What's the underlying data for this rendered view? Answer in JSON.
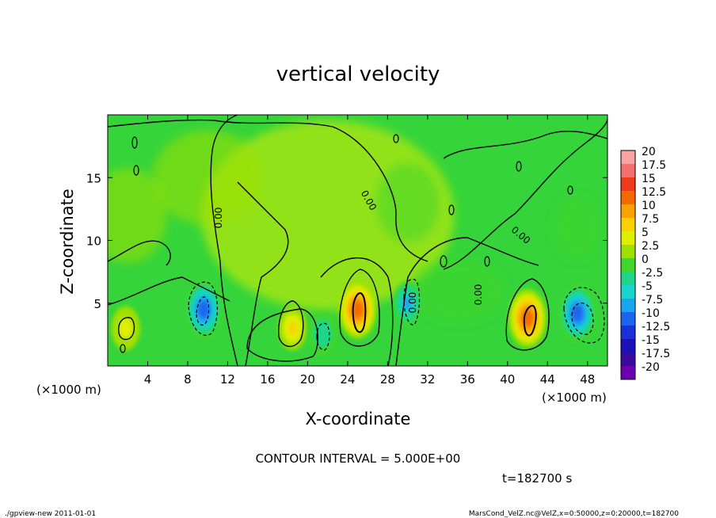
{
  "chart_data": {
    "type": "heatmap",
    "title": "vertical velocity",
    "xlabel": "X-coordinate",
    "ylabel": "Z-coordinate",
    "x_unit": "(×1000 m)",
    "y_unit": "(×1000 m)",
    "xlim": [
      0,
      50
    ],
    "ylim": [
      0,
      20
    ],
    "x_ticks": [
      "4",
      "8",
      "12",
      "16",
      "20",
      "24",
      "28",
      "32",
      "36",
      "40",
      "44",
      "48"
    ],
    "y_ticks": [
      "5",
      "10",
      "15"
    ],
    "contour_interval_text": "CONTOUR INTERVAL = 5.000E+00",
    "contour_labels": [
      "0.00",
      "0.00",
      "0.00",
      "0.00",
      "0.00"
    ],
    "time_text": "t=182700 s",
    "colorbar": {
      "labels": [
        "20",
        "17.5",
        "15",
        "12.5",
        "10",
        "7.5",
        "5",
        "2.5",
        "0",
        "-2.5",
        "-5",
        "-7.5",
        "-10",
        "-12.5",
        "-15",
        "-17.5",
        "-20"
      ],
      "colors": [
        "#f9a3a3",
        "#f56f6f",
        "#f03a1a",
        "#f46a00",
        "#f9a200",
        "#fbd000",
        "#e0ef00",
        "#a0e000",
        "#42d62c",
        "#1ed68a",
        "#18d6cf",
        "#1aa6ef",
        "#1a64ef",
        "#1a30d8",
        "#1c10b8",
        "#3a0a9e",
        "#6a00b0"
      ]
    },
    "features": [
      {
        "kind": "updraft",
        "x": 25,
        "z": 4.5,
        "peak": 12
      },
      {
        "kind": "updraft",
        "x": 42,
        "z": 3.8,
        "peak": 12
      },
      {
        "kind": "updraft",
        "x": 18.5,
        "z": 3.0,
        "peak": 6
      },
      {
        "kind": "updraft",
        "x": 1.8,
        "z": 3.0,
        "peak": 4
      },
      {
        "kind": "downdraft",
        "x": 9.6,
        "z": 4.5,
        "peak": -12
      },
      {
        "kind": "downdraft",
        "x": 47,
        "z": 4.2,
        "peak": -11
      },
      {
        "kind": "downdraft",
        "x": 30,
        "z": 5.0,
        "peak": -8
      },
      {
        "kind": "downdraft",
        "x": 21.5,
        "z": 2.6,
        "peak": -5
      }
    ]
  },
  "footer": {
    "left": "./gpview-new   2011-01-01",
    "right": "MarsCond_VelZ.nc@VelZ,x=0:50000,z=0:20000,t=182700"
  }
}
